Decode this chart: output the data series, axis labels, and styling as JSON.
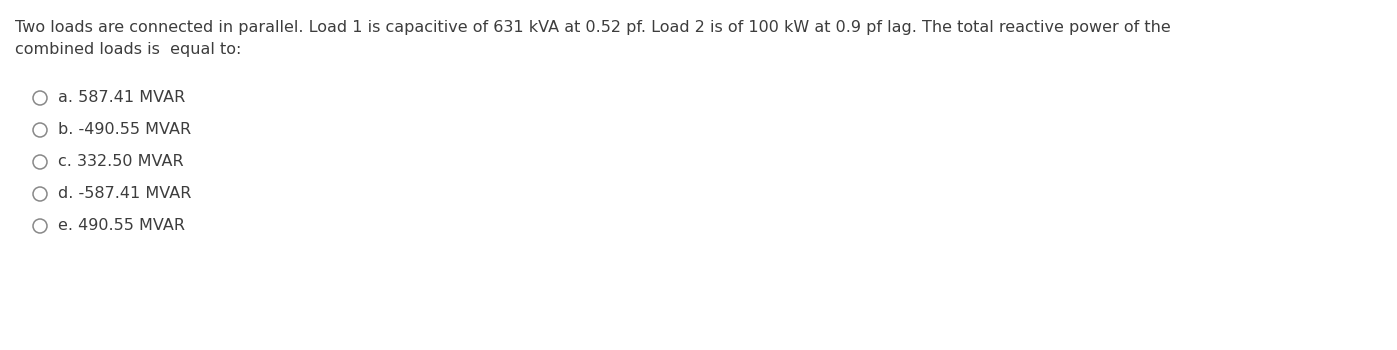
{
  "question_text_line1": "Two loads are connected in parallel. Load 1 is capacitive of 631 kVA at 0.52 pf. Load 2 is of 100 kW at 0.9 pf lag. The total reactive power of the",
  "question_text_line2": "combined loads is  equal to:",
  "options": [
    "a. 587.41 MVAR",
    "b. -490.55 MVAR",
    "c. 332.50 MVAR",
    "d. -587.41 MVAR",
    "e. 490.55 MVAR"
  ],
  "background_color": "#ffffff",
  "text_color": "#3d3d3d",
  "font_size_question": 11.5,
  "font_size_options": 11.5,
  "circle_color": "#888888"
}
